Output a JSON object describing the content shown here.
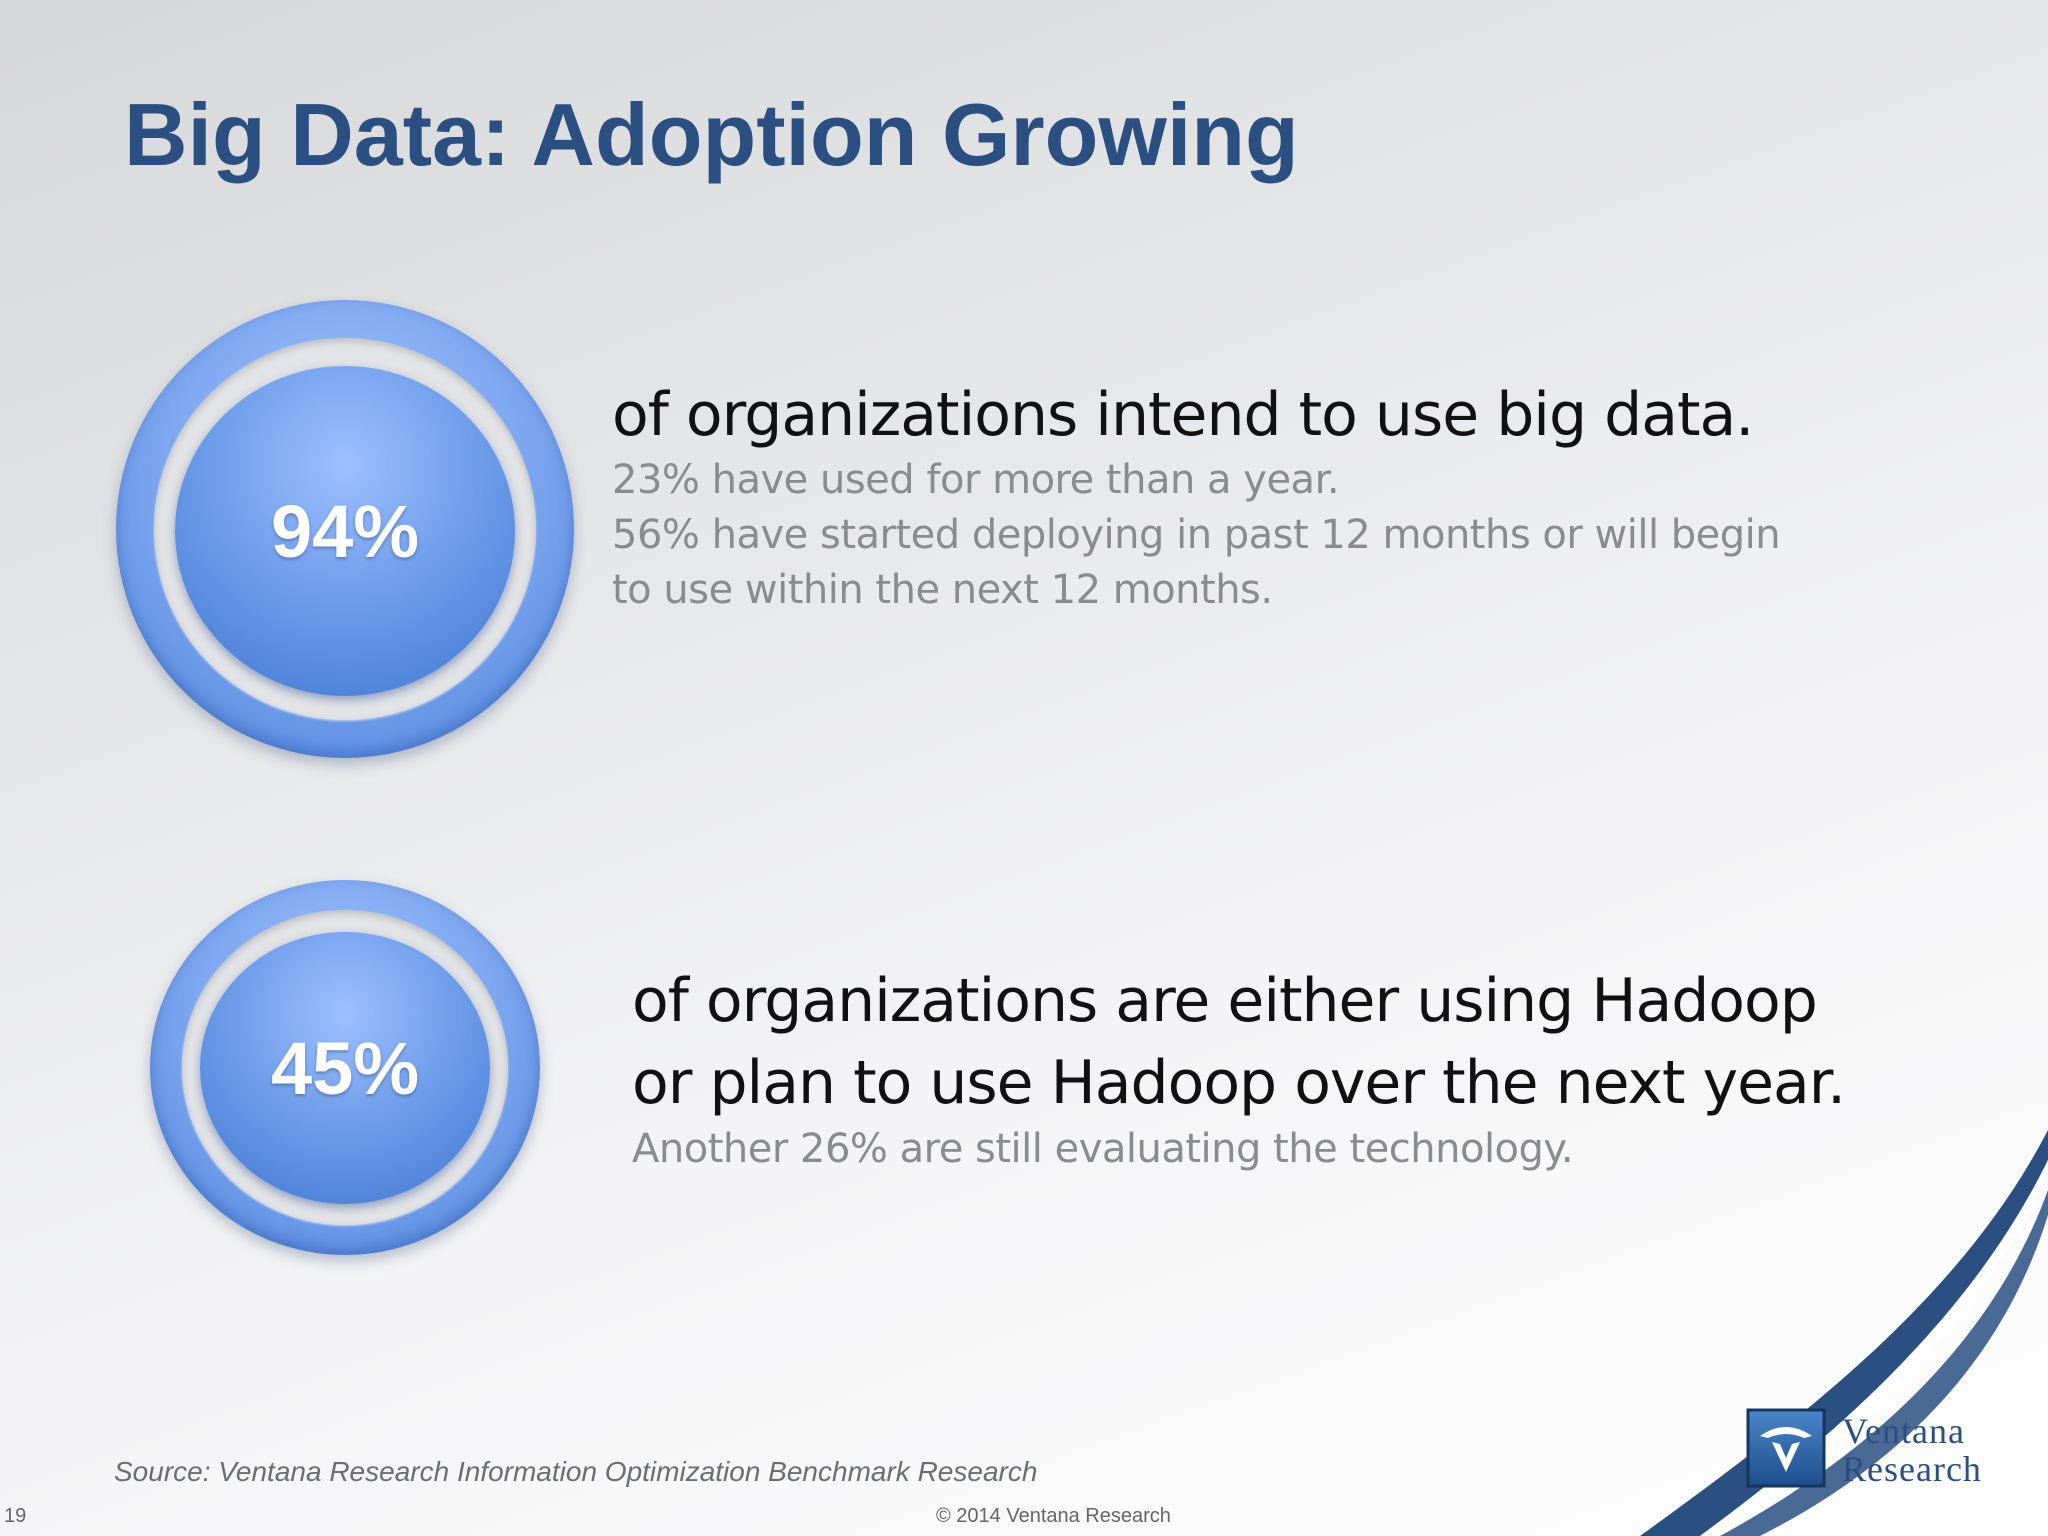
{
  "slide": {
    "title": "Big Data: Adoption Growing",
    "page_number": "19",
    "copyright": "© 2014 Ventana Research",
    "source": "Source: Ventana Research Information Optimization Benchmark Research"
  },
  "stats": [
    {
      "value": "94%",
      "headline_lines": [
        "of organizations intend to use big data."
      ],
      "detail_lines": [
        "23% have used for more than a year.",
        "56% have started deploying in past 12 months or will begin",
        "to use within the next 12 months."
      ]
    },
    {
      "value": "45%",
      "headline_lines": [
        "of organizations are either using Hadoop",
        "or plan to use Hadoop over the next year."
      ],
      "detail_lines": [
        "Another 26% are still evaluating the technology."
      ]
    }
  ],
  "logo": {
    "line1": "Ventana",
    "line2": "Research",
    "brand_color": "#2c4f82"
  },
  "colors": {
    "title": "#2c4f82",
    "stat_blue": "#4f84dc",
    "detail_gray": "#8a8b8d"
  }
}
